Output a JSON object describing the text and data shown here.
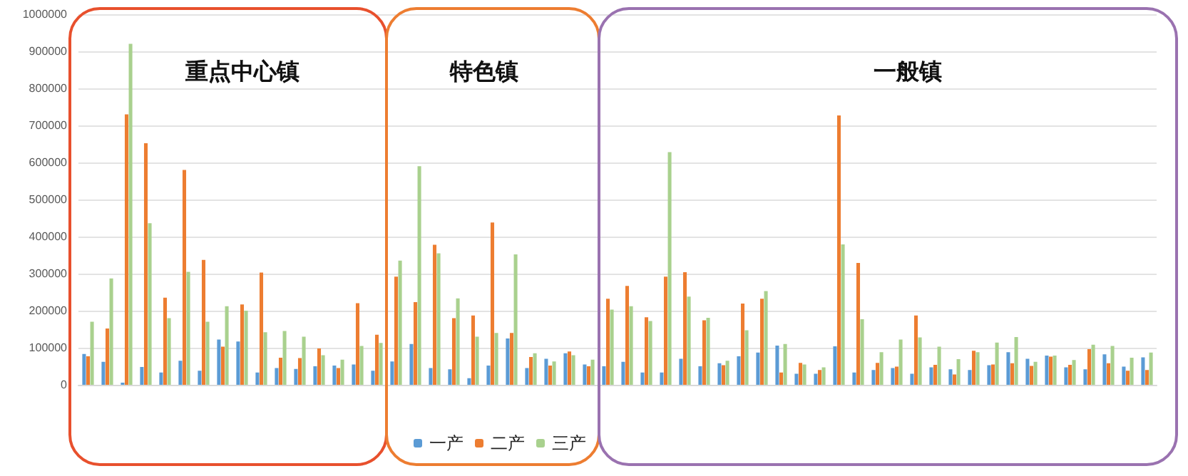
{
  "chart_data": {
    "type": "bar",
    "categories": [
      null,
      null,
      null,
      null,
      null,
      null,
      null,
      null,
      null,
      null,
      null,
      null,
      null,
      null,
      null,
      null,
      null,
      null,
      null,
      null,
      null,
      null,
      null,
      null,
      null,
      null,
      null,
      null,
      null,
      null,
      null,
      null,
      null,
      null,
      null,
      null,
      null,
      null,
      null,
      null,
      null,
      null,
      null,
      null,
      null,
      null,
      null,
      null,
      null,
      null,
      null,
      null,
      null,
      null,
      null,
      null
    ],
    "series": [
      {
        "name": "一产",
        "color": "#5b9bd5",
        "values": [
          83000,
          62000,
          6000,
          48000,
          33000,
          65000,
          38000,
          122000,
          117000,
          33000,
          45000,
          43000,
          50000,
          52000,
          55000,
          38000,
          63000,
          110000,
          45000,
          42000,
          18000,
          52000,
          125000,
          45000,
          70000,
          85000,
          55000,
          50000,
          62000,
          33000,
          33000,
          70000,
          50000,
          58000,
          77000,
          87000,
          106000,
          30000,
          30000,
          104000,
          33000,
          40000,
          45000,
          30000,
          47000,
          42000,
          40000,
          53000,
          88000,
          70000,
          79000,
          47000,
          42000,
          82000,
          49000,
          74000
        ]
      },
      {
        "name": "二产",
        "color": "#ed7d31",
        "values": [
          77000,
          152000,
          730000,
          652000,
          235000,
          580000,
          337000,
          103000,
          217000,
          303000,
          73000,
          72000,
          98000,
          45000,
          220000,
          135000,
          292000,
          223000,
          378000,
          180000,
          187000,
          438000,
          140000,
          75000,
          52000,
          90000,
          50000,
          232000,
          267000,
          182000,
          292000,
          304000,
          174000,
          53000,
          219000,
          232000,
          33000,
          59000,
          40000,
          727000,
          329000,
          59000,
          49000,
          187000,
          54000,
          28000,
          92000,
          55000,
          58000,
          51000,
          76000,
          54000,
          96000,
          58000,
          38000,
          40000
        ]
      },
      {
        "name": "三产",
        "color": "#a9d18e",
        "values": [
          170000,
          287000,
          920000,
          436000,
          180000,
          305000,
          170000,
          212000,
          200000,
          142000,
          145000,
          130000,
          80000,
          68000,
          105000,
          113000,
          335000,
          590000,
          355000,
          233000,
          130000,
          140000,
          352000,
          85000,
          63000,
          80000,
          68000,
          203000,
          212000,
          172000,
          628000,
          238000,
          181000,
          65000,
          147000,
          253000,
          110000,
          55000,
          47000,
          379000,
          177000,
          88000,
          122000,
          128000,
          103000,
          69000,
          88000,
          114000,
          129000,
          62000,
          79000,
          67000,
          108000,
          105000,
          73000,
          87000
        ]
      }
    ],
    "ylim": [
      0,
      1000000
    ],
    "yticks": [
      0,
      100000,
      200000,
      300000,
      400000,
      500000,
      600000,
      700000,
      800000,
      900000,
      1000000
    ],
    "grid": "y",
    "legend": "bottom",
    "tick_labels": "y",
    "annotations": [
      "重点中心镇",
      "特色镇",
      "一般镇"
    ]
  }
}
